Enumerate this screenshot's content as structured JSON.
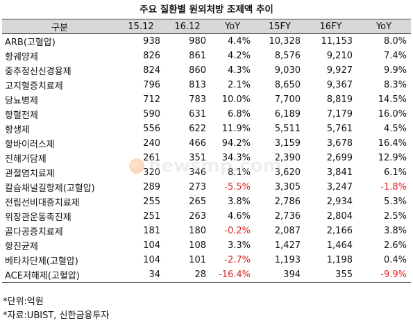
{
  "title": "주요 질환별 원외처방 조제액 추이",
  "columns": [
    "구분",
    "15.12",
    "16.12",
    "YoY",
    "15FY",
    "16FY",
    "YoY"
  ],
  "rows": [
    {
      "name": "ARB(고혈압)",
      "v1512": "938",
      "v1612": "980",
      "yoy1": "4.4%",
      "fy15": "10,328",
      "fy16": "11,153",
      "yoy2": "8.0%"
    },
    {
      "name": "항궤양제",
      "v1512": "826",
      "v1612": "861",
      "yoy1": "4.2%",
      "fy15": "8,576",
      "fy16": "9,210",
      "yoy2": "7.4%"
    },
    {
      "name": "중추정신신경용제",
      "v1512": "824",
      "v1612": "860",
      "yoy1": "4.3%",
      "fy15": "9,030",
      "fy16": "9,927",
      "yoy2": "9.9%"
    },
    {
      "name": "고지혈증치료제",
      "v1512": "796",
      "v1612": "813",
      "yoy1": "2.1%",
      "fy15": "8,650",
      "fy16": "9,367",
      "yoy2": "8.3%"
    },
    {
      "name": "당뇨병제",
      "v1512": "712",
      "v1612": "783",
      "yoy1": "10.0%",
      "fy15": "7,700",
      "fy16": "8,819",
      "yoy2": "14.5%"
    },
    {
      "name": "항혈전제",
      "v1512": "590",
      "v1612": "631",
      "yoy1": "6.8%",
      "fy15": "6,189",
      "fy16": "7,179",
      "yoy2": "16.0%"
    },
    {
      "name": "항생제",
      "v1512": "556",
      "v1612": "622",
      "yoy1": "11.9%",
      "fy15": "5,511",
      "fy16": "5,761",
      "yoy2": "4.5%"
    },
    {
      "name": "항바이러스제",
      "v1512": "240",
      "v1612": "466",
      "yoy1": "94.2%",
      "fy15": "3,159",
      "fy16": "3,678",
      "yoy2": "16.4%"
    },
    {
      "name": "진해거담제",
      "v1512": "261",
      "v1612": "351",
      "yoy1": "34.3%",
      "fy15": "2,390",
      "fy16": "2,699",
      "yoy2": "12.9%"
    },
    {
      "name": "관절염치료제",
      "v1512": "320",
      "v1612": "346",
      "yoy1": "8.1%",
      "fy15": "3,620",
      "fy16": "3,841",
      "yoy2": "6.1%"
    },
    {
      "name": "칼슘채널길항제(고혈압)",
      "v1512": "289",
      "v1612": "273",
      "yoy1": "-5.5%",
      "fy15": "3,305",
      "fy16": "3,247",
      "yoy2": "-1.8%"
    },
    {
      "name": "전립선비대증치료제",
      "v1512": "255",
      "v1612": "265",
      "yoy1": "3.8%",
      "fy15": "2,786",
      "fy16": "2,934",
      "yoy2": "5.3%"
    },
    {
      "name": "위장관운동촉진제",
      "v1512": "251",
      "v1612": "263",
      "yoy1": "4.6%",
      "fy15": "2,736",
      "fy16": "2,804",
      "yoy2": "2.5%"
    },
    {
      "name": "골다공증치료제",
      "v1512": "181",
      "v1612": "180",
      "yoy1": "-0.2%",
      "fy15": "2,087",
      "fy16": "2,166",
      "yoy2": "3.8%"
    },
    {
      "name": "항진균제",
      "v1512": "104",
      "v1612": "108",
      "yoy1": "3.3%",
      "fy15": "1,427",
      "fy16": "1,464",
      "yoy2": "2.6%"
    },
    {
      "name": "베타차단제(고혈압)",
      "v1512": "104",
      "v1612": "101",
      "yoy1": "-2.7%",
      "fy15": "1,193",
      "fy16": "1,198",
      "yoy2": "0.4%"
    },
    {
      "name": "ACE저해제(고혈압)",
      "v1512": "34",
      "v1612": "28",
      "yoy1": "-16.4%",
      "fy15": "394",
      "fy16": "355",
      "yoy2": "-9.9%"
    }
  ],
  "notes": [
    "*단위:억원",
    "*자료:UBIST, 신한금융투자"
  ],
  "watermark": "newsmp.com",
  "colors": {
    "negative": "#e02020",
    "header_bg": "#d8d8d8"
  }
}
